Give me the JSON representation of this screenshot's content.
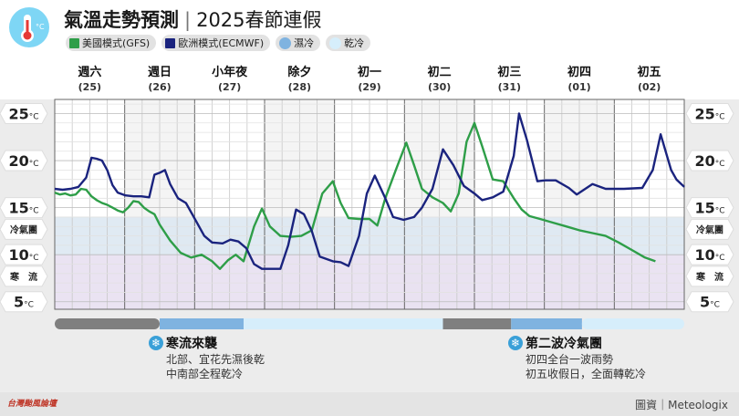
{
  "header": {
    "title": "氣溫走勢預測",
    "subtitle": "2025春節連假",
    "legend": [
      {
        "label": "美國模式(GFS)",
        "color": "#2e9e48"
      },
      {
        "label": "歐洲模式(ECMWF)",
        "color": "#1a237e"
      },
      {
        "label": "濕冷",
        "color": "#7fb3e0"
      },
      {
        "label": "乾冷",
        "color": "#d6eefb"
      }
    ]
  },
  "chart_data": {
    "type": "line",
    "categories": [
      {
        "day": "週六",
        "date": "(25)"
      },
      {
        "day": "週日",
        "date": "(26)"
      },
      {
        "day": "小年夜",
        "date": "(27)"
      },
      {
        "day": "除夕",
        "date": "(28)"
      },
      {
        "day": "初一",
        "date": "(29)"
      },
      {
        "day": "初二",
        "date": "(30)"
      },
      {
        "day": "初三",
        "date": "(31)"
      },
      {
        "day": "初四",
        "date": "(01)"
      },
      {
        "day": "初五",
        "date": "(02)"
      }
    ],
    "y_ticks": [
      {
        "v": 25,
        "label": "25"
      },
      {
        "v": 20,
        "label": "20"
      },
      {
        "v": 15,
        "label": "15"
      },
      {
        "v": 10,
        "label": "10"
      },
      {
        "v": 5,
        "label": "5"
      }
    ],
    "unit": "°C",
    "ylim": [
      4.2,
      26.5
    ],
    "bands": [
      {
        "label": "冷氣團",
        "from": 10,
        "to": 14,
        "color": "#dbe6f1"
      },
      {
        "label": "寒　流",
        "from": 4.2,
        "to": 10,
        "color": "#e6def0"
      }
    ],
    "series": [
      {
        "name": "美國模式(GFS)",
        "color": "#2e9e48",
        "values": [
          [
            0.0,
            16.6
          ],
          [
            0.1,
            16.4
          ],
          [
            0.2,
            16.5
          ],
          [
            0.3,
            16.3
          ],
          [
            0.4,
            16.4
          ],
          [
            0.5,
            17.0
          ],
          [
            0.6,
            16.9
          ],
          [
            0.7,
            16.2
          ],
          [
            0.8,
            15.8
          ],
          [
            0.9,
            15.5
          ],
          [
            1.0,
            15.3
          ],
          [
            1.1,
            15.0
          ],
          [
            1.2,
            14.7
          ],
          [
            1.3,
            14.5
          ],
          [
            1.4,
            15.0
          ],
          [
            1.5,
            15.7
          ],
          [
            1.6,
            15.6
          ],
          [
            1.7,
            15.0
          ],
          [
            1.8,
            14.6
          ],
          [
            1.9,
            14.3
          ],
          [
            2.0,
            13.2
          ],
          [
            2.2,
            11.5
          ],
          [
            2.4,
            10.2
          ],
          [
            2.6,
            9.7
          ],
          [
            2.8,
            10.0
          ],
          [
            3.0,
            9.3
          ],
          [
            3.15,
            8.5
          ],
          [
            3.3,
            9.4
          ],
          [
            3.45,
            10.0
          ],
          [
            3.6,
            9.3
          ],
          [
            3.8,
            13.0
          ],
          [
            3.95,
            14.9
          ],
          [
            4.1,
            13.0
          ],
          [
            4.3,
            12.0
          ],
          [
            4.5,
            11.9
          ],
          [
            4.7,
            12.0
          ],
          [
            4.9,
            12.6
          ],
          [
            5.1,
            16.5
          ],
          [
            5.3,
            17.8
          ],
          [
            5.45,
            15.5
          ],
          [
            5.6,
            13.9
          ],
          [
            5.8,
            13.8
          ],
          [
            6.0,
            13.8
          ],
          [
            6.15,
            13.1
          ],
          [
            6.3,
            16.0
          ],
          [
            6.5,
            19.0
          ],
          [
            6.7,
            21.9
          ],
          [
            6.85,
            19.5
          ],
          [
            7.0,
            17.0
          ],
          [
            7.2,
            16.1
          ],
          [
            7.4,
            15.5
          ],
          [
            7.55,
            14.6
          ],
          [
            7.7,
            16.5
          ],
          [
            7.85,
            22.0
          ],
          [
            8.0,
            24.0
          ],
          [
            8.15,
            21.5
          ],
          [
            8.35,
            18.0
          ],
          [
            8.55,
            17.8
          ],
          [
            8.75,
            16.0
          ],
          [
            8.9,
            14.8
          ],
          [
            9.05,
            14.1
          ],
          [
            9.25,
            13.8
          ],
          [
            9.5,
            13.4
          ],
          [
            9.75,
            13.0
          ],
          [
            10.0,
            12.6
          ],
          [
            10.25,
            12.3
          ],
          [
            10.5,
            12.0
          ],
          [
            10.75,
            11.3
          ],
          [
            11.0,
            10.5
          ],
          [
            11.25,
            9.7
          ],
          [
            11.45,
            9.3
          ]
        ]
      },
      {
        "name": "歐洲模式(ECMWF)",
        "color": "#1a237e",
        "values": [
          [
            0.0,
            17.0
          ],
          [
            0.15,
            16.9
          ],
          [
            0.3,
            17.0
          ],
          [
            0.45,
            17.2
          ],
          [
            0.6,
            18.2
          ],
          [
            0.7,
            20.3
          ],
          [
            0.8,
            20.2
          ],
          [
            0.9,
            20.0
          ],
          [
            1.0,
            19.0
          ],
          [
            1.1,
            17.4
          ],
          [
            1.2,
            16.6
          ],
          [
            1.35,
            16.3
          ],
          [
            1.5,
            16.2
          ],
          [
            1.65,
            16.2
          ],
          [
            1.8,
            16.1
          ],
          [
            1.9,
            18.5
          ],
          [
            2.0,
            18.7
          ],
          [
            2.1,
            19.0
          ],
          [
            2.2,
            17.5
          ],
          [
            2.35,
            16.0
          ],
          [
            2.5,
            15.5
          ],
          [
            2.7,
            13.5
          ],
          [
            2.85,
            12.0
          ],
          [
            3.0,
            11.3
          ],
          [
            3.2,
            11.2
          ],
          [
            3.35,
            11.6
          ],
          [
            3.5,
            11.4
          ],
          [
            3.65,
            10.7
          ],
          [
            3.8,
            9.0
          ],
          [
            3.95,
            8.5
          ],
          [
            4.1,
            8.5
          ],
          [
            4.3,
            8.5
          ],
          [
            4.45,
            11.0
          ],
          [
            4.6,
            14.8
          ],
          [
            4.75,
            14.3
          ],
          [
            4.9,
            12.5
          ],
          [
            5.05,
            9.8
          ],
          [
            5.3,
            9.3
          ],
          [
            5.45,
            9.2
          ],
          [
            5.6,
            8.8
          ],
          [
            5.8,
            12.0
          ],
          [
            5.95,
            16.5
          ],
          [
            6.1,
            18.4
          ],
          [
            6.3,
            16.0
          ],
          [
            6.45,
            14.0
          ],
          [
            6.65,
            13.7
          ],
          [
            6.85,
            14.0
          ],
          [
            7.0,
            15.0
          ],
          [
            7.2,
            17.0
          ],
          [
            7.4,
            21.2
          ],
          [
            7.6,
            19.5
          ],
          [
            7.8,
            17.3
          ],
          [
            8.0,
            16.5
          ],
          [
            8.15,
            15.8
          ],
          [
            8.35,
            16.1
          ],
          [
            8.55,
            16.7
          ],
          [
            8.75,
            20.5
          ],
          [
            8.85,
            25.0
          ],
          [
            9.0,
            22.2
          ],
          [
            9.2,
            17.8
          ],
          [
            9.35,
            17.9
          ],
          [
            9.55,
            17.9
          ],
          [
            9.8,
            17.1
          ],
          [
            9.95,
            16.4
          ],
          [
            10.25,
            17.5
          ],
          [
            10.5,
            17.0
          ],
          [
            10.85,
            17.0
          ],
          [
            11.2,
            17.1
          ],
          [
            11.4,
            19.0
          ],
          [
            11.55,
            22.8
          ],
          [
            11.75,
            19.0
          ],
          [
            11.85,
            18.0
          ],
          [
            12.0,
            17.2
          ]
        ]
      }
    ]
  },
  "timeline": [
    {
      "from": 0.0,
      "to": 2.0,
      "color": "#7f7f7f"
    },
    {
      "from": 2.0,
      "to": 3.6,
      "color": "#7fb3e0"
    },
    {
      "from": 3.6,
      "to": 7.4,
      "color": "#d6eefb"
    },
    {
      "from": 7.4,
      "to": 8.7,
      "color": "#7f7f7f"
    },
    {
      "from": 8.7,
      "to": 10.05,
      "color": "#7fb3e0"
    },
    {
      "from": 10.05,
      "to": 12.0,
      "color": "#d6eefb"
    }
  ],
  "notes": [
    {
      "title": "寒流來襲",
      "lines": [
        "北部、宜花先濕後乾",
        "中南部全程乾冷"
      ]
    },
    {
      "title": "第二波冷氣團",
      "lines": [
        "初四全台一波雨勢",
        "初五收假日，全面轉乾冷"
      ]
    }
  ],
  "footer": {
    "brand": "台灣颱風論壇",
    "credit": "圖資｜Meteologix"
  }
}
